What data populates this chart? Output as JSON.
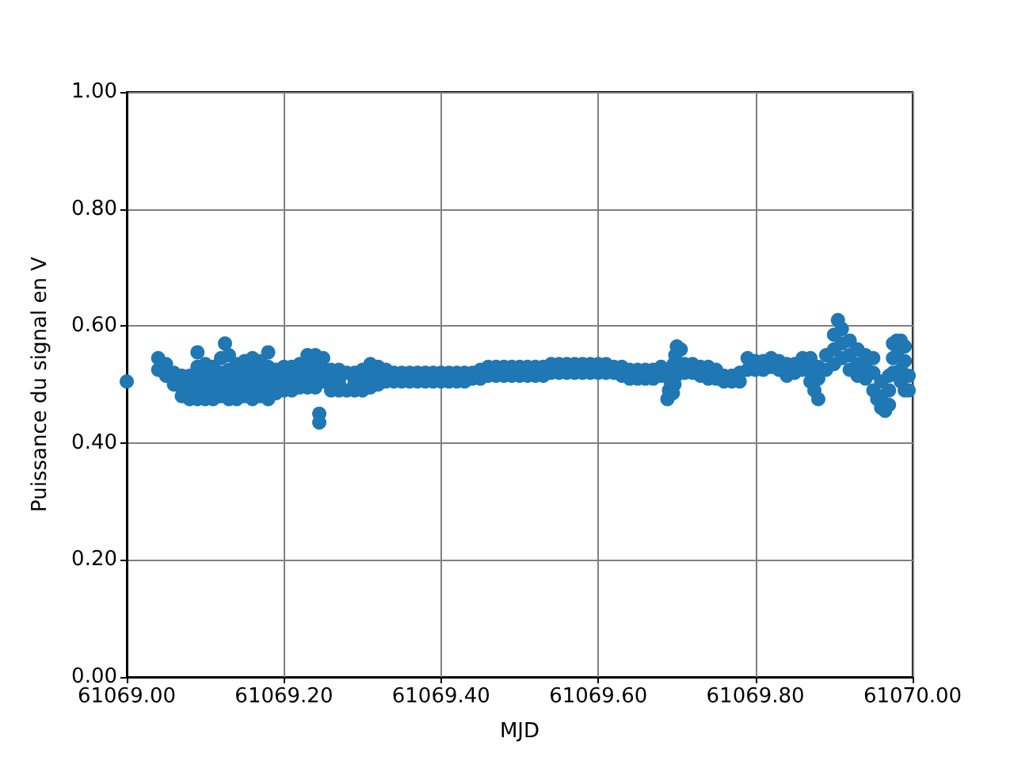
{
  "chart_data": {
    "type": "scatter",
    "xlabel": "MJD",
    "ylabel": "Puissance du signal en V",
    "color": "#1f77b4",
    "marker": "circle",
    "grid": true,
    "xlim": [
      61069,
      61070
    ],
    "ylim": [
      0,
      1
    ],
    "xticks": [
      {
        "value": 61069,
        "label": "61069.00"
      },
      {
        "value": 61069.2,
        "label": "61069.20"
      },
      {
        "value": 61069.4,
        "label": "61069.40"
      },
      {
        "value": 61069.6,
        "label": "61069.60"
      },
      {
        "value": 61069.8,
        "label": "61069.80"
      },
      {
        "value": 61070,
        "label": "61070.00"
      }
    ],
    "yticks": [
      {
        "value": 0,
        "label": "0.00"
      },
      {
        "value": 0.2,
        "label": "0.20"
      },
      {
        "value": 0.4,
        "label": "0.40"
      },
      {
        "value": 0.6,
        "label": "0.60"
      },
      {
        "value": 0.8,
        "label": "0.80"
      },
      {
        "value": 1,
        "label": "1.00"
      }
    ],
    "x": [
      61069.0,
      61069.04,
      61069.04,
      61069.05,
      61069.05,
      61069.06,
      61069.06,
      61069.07,
      61069.07,
      61069.07,
      61069.08,
      61069.08,
      61069.08,
      61069.09,
      61069.09,
      61069.09,
      61069.09,
      61069.09,
      61069.1,
      61069.1,
      61069.1,
      61069.1,
      61069.11,
      61069.11,
      61069.11,
      61069.11,
      61069.12,
      61069.12,
      61069.12,
      61069.12,
      61069.125,
      61069.13,
      61069.13,
      61069.13,
      61069.13,
      61069.13,
      61069.14,
      61069.14,
      61069.14,
      61069.14,
      61069.15,
      61069.15,
      61069.15,
      61069.15,
      61069.16,
      61069.16,
      61069.16,
      61069.16,
      61069.16,
      61069.17,
      61069.17,
      61069.17,
      61069.17,
      61069.18,
      61069.18,
      61069.18,
      61069.18,
      61069.18,
      61069.19,
      61069.19,
      61069.19,
      61069.2,
      61069.2,
      61069.2,
      61069.21,
      61069.21,
      61069.21,
      61069.22,
      61069.22,
      61069.22,
      61069.23,
      61069.23,
      61069.23,
      61069.23,
      61069.24,
      61069.24,
      61069.24,
      61069.24,
      61069.245,
      61069.245,
      61069.25,
      61069.25,
      61069.25,
      61069.26,
      61069.26,
      61069.26,
      61069.27,
      61069.27,
      61069.27,
      61069.28,
      61069.28,
      61069.29,
      61069.29,
      61069.29,
      61069.3,
      61069.3,
      61069.3,
      61069.31,
      61069.31,
      61069.31,
      61069.32,
      61069.32,
      61069.32,
      61069.33,
      61069.33,
      61069.34,
      61069.34,
      61069.35,
      61069.35,
      61069.36,
      61069.36,
      61069.37,
      61069.37,
      61069.38,
      61069.38,
      61069.39,
      61069.39,
      61069.4,
      61069.4,
      61069.41,
      61069.41,
      61069.42,
      61069.42,
      61069.43,
      61069.43,
      61069.44,
      61069.44,
      61069.45,
      61069.45,
      61069.46,
      61069.46,
      61069.47,
      61069.47,
      61069.48,
      61069.48,
      61069.49,
      61069.49,
      61069.5,
      61069.5,
      61069.51,
      61069.51,
      61069.52,
      61069.52,
      61069.53,
      61069.53,
      61069.54,
      61069.54,
      61069.55,
      61069.55,
      61069.56,
      61069.56,
      61069.57,
      61069.57,
      61069.58,
      61069.58,
      61069.59,
      61069.59,
      61069.6,
      61069.6,
      61069.61,
      61069.61,
      61069.62,
      61069.62,
      61069.63,
      61069.63,
      61069.64,
      61069.64,
      61069.65,
      61069.65,
      61069.66,
      61069.66,
      61069.67,
      61069.67,
      61069.68,
      61069.68,
      61069.688,
      61069.69,
      61069.692,
      61069.694,
      61069.696,
      61069.698,
      61069.7,
      61069.695,
      61069.697,
      61069.699,
      61069.705,
      61069.71,
      61069.71,
      61069.72,
      61069.72,
      61069.73,
      61069.73,
      61069.74,
      61069.74,
      61069.75,
      61069.75,
      61069.76,
      61069.76,
      61069.77,
      61069.77,
      61069.78,
      61069.78,
      61069.79,
      61069.79,
      61069.8,
      61069.8,
      61069.81,
      61069.81,
      61069.82,
      61069.82,
      61069.83,
      61069.83,
      61069.84,
      61069.84,
      61069.85,
      61069.85,
      61069.86,
      61069.86,
      61069.87,
      61069.87,
      61069.87,
      61069.875,
      61069.88,
      61069.88,
      61069.88,
      61069.89,
      61069.89,
      61069.9,
      61069.9,
      61069.9,
      61069.905,
      61069.91,
      61069.91,
      61069.91,
      61069.92,
      61069.92,
      61069.92,
      61069.93,
      61069.93,
      61069.93,
      61069.94,
      61069.94,
      61069.94,
      61069.95,
      61069.95,
      61069.95,
      61069.955,
      61069.96,
      61069.96,
      61069.96,
      61069.965,
      61069.97,
      61069.97,
      61069.97,
      61069.975,
      61069.975,
      61069.975,
      61069.98,
      61069.98,
      61069.985,
      61069.985,
      61069.985,
      61069.99,
      61069.99,
      61069.99,
      61069.995,
      61069.995
    ],
    "values": [
      0.505,
      0.545,
      0.525,
      0.535,
      0.515,
      0.52,
      0.5,
      0.515,
      0.495,
      0.48,
      0.515,
      0.495,
      0.475,
      0.555,
      0.53,
      0.51,
      0.49,
      0.475,
      0.535,
      0.515,
      0.495,
      0.475,
      0.53,
      0.51,
      0.49,
      0.475,
      0.545,
      0.52,
      0.5,
      0.48,
      0.57,
      0.55,
      0.525,
      0.505,
      0.485,
      0.475,
      0.535,
      0.515,
      0.495,
      0.475,
      0.54,
      0.52,
      0.5,
      0.48,
      0.545,
      0.525,
      0.505,
      0.485,
      0.475,
      0.54,
      0.52,
      0.5,
      0.48,
      0.555,
      0.53,
      0.51,
      0.49,
      0.475,
      0.525,
      0.505,
      0.485,
      0.53,
      0.51,
      0.49,
      0.53,
      0.51,
      0.49,
      0.535,
      0.515,
      0.495,
      0.55,
      0.53,
      0.51,
      0.495,
      0.55,
      0.53,
      0.51,
      0.495,
      0.45,
      0.435,
      0.545,
      0.525,
      0.505,
      0.525,
      0.505,
      0.49,
      0.525,
      0.505,
      0.49,
      0.52,
      0.49,
      0.52,
      0.505,
      0.49,
      0.525,
      0.51,
      0.49,
      0.535,
      0.515,
      0.495,
      0.53,
      0.51,
      0.5,
      0.525,
      0.505,
      0.52,
      0.505,
      0.52,
      0.505,
      0.52,
      0.505,
      0.52,
      0.505,
      0.52,
      0.505,
      0.52,
      0.505,
      0.52,
      0.505,
      0.52,
      0.505,
      0.52,
      0.505,
      0.52,
      0.505,
      0.52,
      0.51,
      0.525,
      0.51,
      0.53,
      0.515,
      0.53,
      0.515,
      0.53,
      0.515,
      0.53,
      0.515,
      0.53,
      0.515,
      0.53,
      0.515,
      0.53,
      0.515,
      0.53,
      0.515,
      0.535,
      0.52,
      0.535,
      0.52,
      0.535,
      0.52,
      0.535,
      0.52,
      0.535,
      0.52,
      0.535,
      0.52,
      0.535,
      0.52,
      0.535,
      0.52,
      0.53,
      0.52,
      0.53,
      0.515,
      0.525,
      0.51,
      0.525,
      0.51,
      0.525,
      0.51,
      0.525,
      0.51,
      0.53,
      0.515,
      0.475,
      0.49,
      0.505,
      0.52,
      0.535,
      0.55,
      0.565,
      0.485,
      0.5,
      0.515,
      0.56,
      0.535,
      0.52,
      0.535,
      0.52,
      0.53,
      0.515,
      0.53,
      0.51,
      0.525,
      0.51,
      0.515,
      0.505,
      0.515,
      0.505,
      0.52,
      0.505,
      0.545,
      0.525,
      0.54,
      0.525,
      0.54,
      0.525,
      0.545,
      0.53,
      0.54,
      0.525,
      0.535,
      0.515,
      0.535,
      0.52,
      0.545,
      0.525,
      0.545,
      0.525,
      0.505,
      0.49,
      0.53,
      0.51,
      0.475,
      0.55,
      0.525,
      0.585,
      0.56,
      0.535,
      0.61,
      0.595,
      0.57,
      0.545,
      0.575,
      0.55,
      0.525,
      0.56,
      0.535,
      0.515,
      0.55,
      0.53,
      0.51,
      0.545,
      0.52,
      0.49,
      0.475,
      0.505,
      0.48,
      0.46,
      0.455,
      0.515,
      0.49,
      0.465,
      0.57,
      0.545,
      0.52,
      0.575,
      0.55,
      0.575,
      0.525,
      0.505,
      0.565,
      0.54,
      0.49,
      0.515,
      0.49
    ]
  }
}
